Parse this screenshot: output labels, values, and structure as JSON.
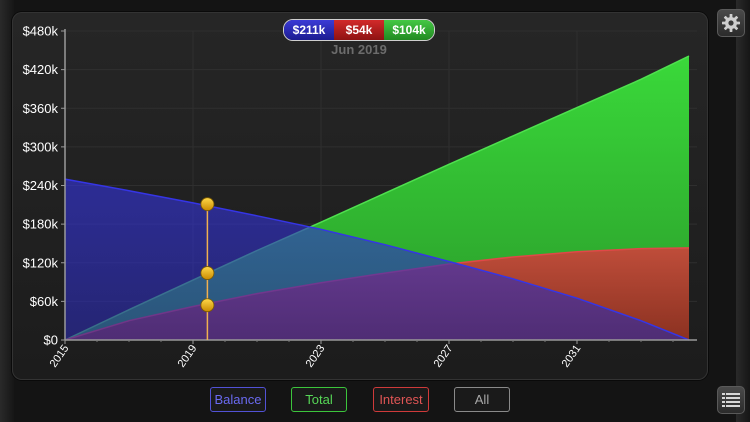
{
  "legend": {
    "balance_value": "$211k",
    "interest_value": "$54k",
    "total_value": "$104k",
    "date": "Jun 2019"
  },
  "buttons": {
    "balance": "Balance",
    "total": "Total",
    "interest": "Interest",
    "all": "All"
  },
  "colors": {
    "balance": "#2f2fd8",
    "interest": "#c82a2a",
    "total": "#33cc33",
    "marker": "#f0b400"
  },
  "icons": {
    "settings": "gear-icon",
    "list": "list-icon"
  },
  "chart_data": {
    "type": "area",
    "title": "",
    "xlabel": "",
    "ylabel": "",
    "xlim": [
      2015,
      2034.75
    ],
    "ylim": [
      0,
      480000
    ],
    "x_ticks": [
      "2015",
      "2019",
      "2023",
      "2027",
      "2031"
    ],
    "x_tick_values": [
      2015,
      2019,
      2023,
      2027,
      2031
    ],
    "y_ticks": [
      "$0",
      "$60k",
      "$120k",
      "$180k",
      "$240k",
      "$300k",
      "$360k",
      "$420k",
      "$480k"
    ],
    "y_tick_values": [
      0,
      60000,
      120000,
      180000,
      240000,
      300000,
      360000,
      420000,
      480000
    ],
    "x": [
      2015,
      2017,
      2019,
      2021,
      2023,
      2025,
      2027,
      2029,
      2031,
      2033,
      2034.5
    ],
    "series": [
      {
        "name": "Total",
        "color": "#33cc33",
        "values": [
          0,
          47000,
          93000,
          139000,
          183000,
          228000,
          273000,
          317000,
          361000,
          405000,
          441000
        ]
      },
      {
        "name": "Interest",
        "color": "#c82a2a",
        "values": [
          0,
          30000,
          52000,
          72000,
          89000,
          104000,
          118000,
          129000,
          137000,
          142000,
          143000
        ]
      },
      {
        "name": "Balance",
        "color": "#2f2fd8",
        "values": [
          250000,
          232000,
          213000,
          193000,
          172000,
          148000,
          122000,
          95000,
          65000,
          30000,
          0
        ]
      }
    ],
    "cursor": {
      "x": 2019.45,
      "label": "Jun 2019",
      "balance": 211000,
      "interest": 54000,
      "total": 104000
    },
    "grid": true
  }
}
